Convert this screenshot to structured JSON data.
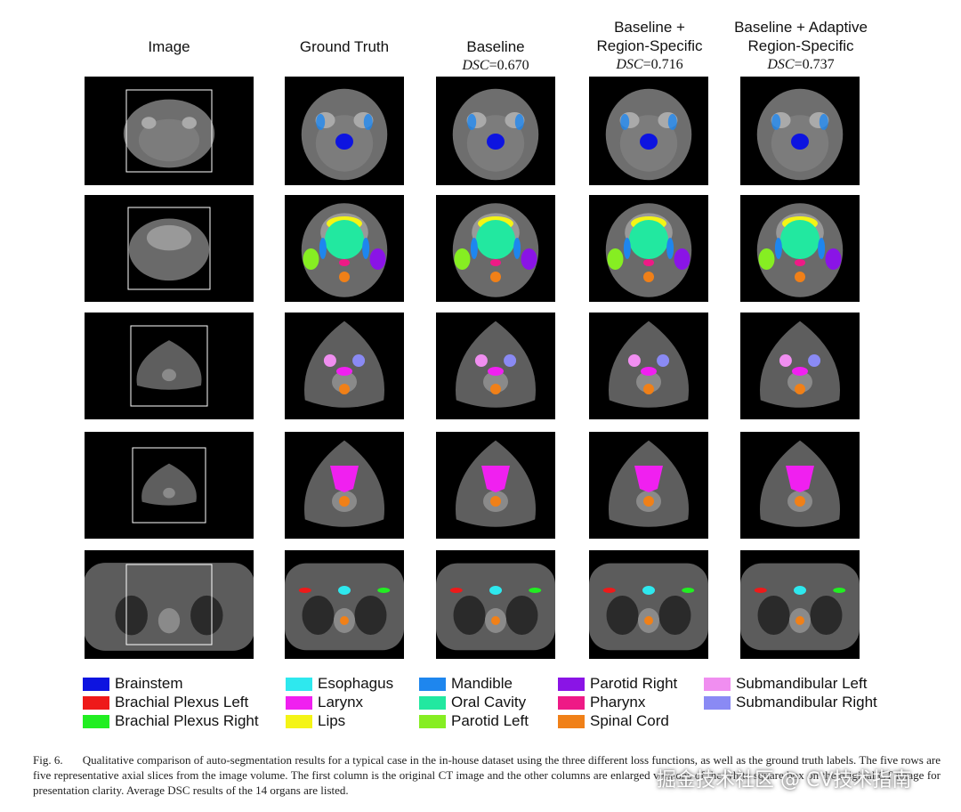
{
  "columns": [
    {
      "title": "Image",
      "dsc": ""
    },
    {
      "title": "Ground Truth",
      "dsc": ""
    },
    {
      "title": "Baseline",
      "dsc": "=0.670"
    },
    {
      "title": "Baseline +\nRegion-Specific",
      "dsc": "=0.716"
    },
    {
      "title": "Baseline + Adaptive\nRegion-Specific",
      "dsc": "=0.737"
    }
  ],
  "dsc_label": "DSC",
  "legend": [
    {
      "label": "Brainstem",
      "color": "#0d14e0"
    },
    {
      "label": "Brachial Plexus Left",
      "color": "#ee1a1a"
    },
    {
      "label": "Brachial Plexus Right",
      "color": "#22ee22"
    },
    {
      "label": "Esophagus",
      "color": "#2ee8ee"
    },
    {
      "label": "Larynx",
      "color": "#f020f0"
    },
    {
      "label": "Lips",
      "color": "#f4f416"
    },
    {
      "label": "Mandible",
      "color": "#1e86ee"
    },
    {
      "label": "Oral Cavity",
      "color": "#22e8a0"
    },
    {
      "label": "Parotid Left",
      "color": "#86ee22"
    },
    {
      "label": "Parotid Right",
      "color": "#8a14e6"
    },
    {
      "label": "Pharynx",
      "color": "#ee1a86"
    },
    {
      "label": "Spinal Cord",
      "color": "#f08018"
    },
    {
      "label": "Submandibular Left",
      "color": "#f08ef0"
    },
    {
      "label": "Submandibular Right",
      "color": "#8a8af4"
    }
  ],
  "caption": {
    "fig": "Fig. 6.",
    "text": "Qualitative comparison of auto-segmentation results for a typical case in the in-house dataset using the three different loss functions, as well as the ground truth labels. The five rows are five representative axial slices from the image volume. The first column is the original CT image and the other columns are enlarged versions of the white square box on the original CT image for presentation clarity. Average DSC results of the 14 organs are listed."
  },
  "watermark": "掘金技术社区 @ CV技术指南"
}
